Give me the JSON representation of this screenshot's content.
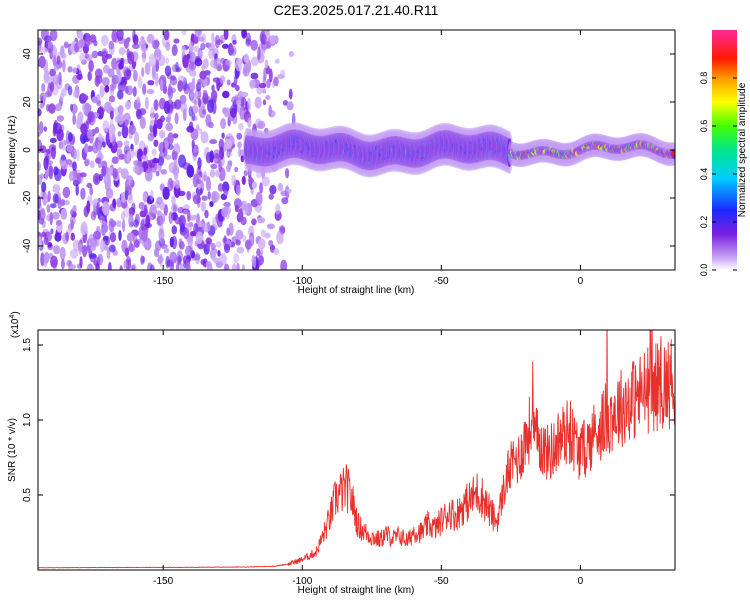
{
  "figure_title": "C2E3.2025.017.21.40.R11",
  "colors": {
    "snr_line": "#e8302c",
    "spectro_low": "#7a2fd8",
    "spectro_faint": "#d8c8f4"
  },
  "chart_data": [
    {
      "type": "heatmap",
      "title": "C2E3.2025.017.21.40.R11",
      "xlabel": "Height of straight line (km)",
      "ylabel": "Frequency (Hz)",
      "xlim": [
        -195,
        34
      ],
      "ylim": [
        -50,
        50
      ],
      "xticks": [
        -150,
        -100,
        -50,
        0
      ],
      "yticks": [
        -40,
        -20,
        0,
        20,
        40
      ],
      "colormap": "rainbow (purple-blue-cyan-green-yellow-red-magenta)",
      "colorbar": {
        "label": "Normalized spectral amplitude",
        "range": [
          0,
          1
        ],
        "ticks": [
          "0.0",
          "0.2",
          "0.4",
          "0.6",
          "0.8"
        ]
      },
      "grid": false,
      "regions": [
        {
          "x_range": [
            -195,
            -105
          ],
          "freq_range": [
            -50,
            50
          ],
          "amplitude": 0.1,
          "description_level": "noise"
        },
        {
          "x_range": [
            -120,
            -25
          ],
          "freq_center": 0,
          "freq_halfwidth": 6,
          "amplitude": 0.3
        },
        {
          "x_range": [
            -25,
            34
          ],
          "freq_center": 0,
          "freq_halfwidth": 2,
          "amplitude": 0.85
        }
      ]
    },
    {
      "type": "line",
      "xlabel": "Height of straight line (km)",
      "ylabel": "SNR (10 * v/v)",
      "ylabel_multiplier": "(x10",
      "ylabel_multiplier_exp": "4",
      "ylabel_multiplier_close": ")",
      "xlim": [
        -195,
        34
      ],
      "ylim": [
        0,
        16000
      ],
      "xticks": [
        -150,
        -100,
        -50,
        0
      ],
      "yticks": [
        0.5,
        1.0,
        1.5
      ],
      "ytick_labels": [
        "0.5",
        "1.0",
        "1.5"
      ],
      "grid": false,
      "series": [
        {
          "x": [
            -195,
            -180,
            -160,
            -140,
            -120,
            -110,
            -105,
            -100,
            -95,
            -92,
            -90,
            -88,
            -86,
            -84,
            -82,
            -80,
            -78,
            -75,
            -72,
            -70,
            -67,
            -65,
            -62,
            -60,
            -57,
            -55,
            -52,
            -50,
            -47,
            -45,
            -42,
            -40,
            -37,
            -35,
            -32,
            -30,
            -28,
            -26,
            -24,
            -22,
            -20,
            -18,
            -16,
            -14,
            -12,
            -10,
            -8,
            -6,
            -4,
            -2,
            0,
            2,
            4,
            6,
            8,
            10,
            12,
            15,
            18,
            21,
            24,
            27,
            30,
            34
          ],
          "y": [
            150,
            160,
            170,
            180,
            200,
            250,
            400,
            700,
            1200,
            2500,
            3500,
            4800,
            5200,
            5500,
            4600,
            3000,
            2600,
            2200,
            2000,
            2400,
            2100,
            2300,
            1900,
            2600,
            2500,
            3000,
            2800,
            3300,
            3900,
            3600,
            4300,
            4600,
            5200,
            4800,
            3700,
            3200,
            5000,
            6500,
            7200,
            7500,
            8600,
            9500,
            8800,
            8300,
            7800,
            8000,
            8600,
            9000,
            9300,
            8500,
            7800,
            8200,
            8800,
            9400,
            9800,
            10200,
            10500,
            10900,
            11300,
            11600,
            12000,
            12200,
            12400,
            12600
          ]
        }
      ]
    }
  ]
}
